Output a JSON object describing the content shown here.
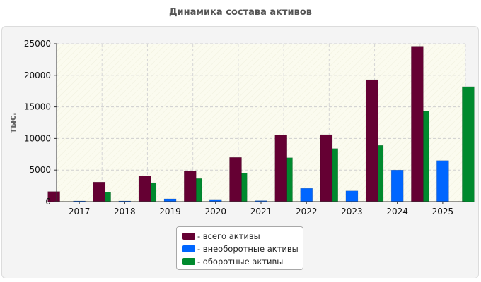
{
  "chart_data": {
    "type": "bar",
    "title": "Динамика состава активов",
    "ylabel": "тыс.",
    "xlabel": "",
    "categories": [
      "2017",
      "2018",
      "2019",
      "2020",
      "2021",
      "2022",
      "2023",
      "2024",
      "2025"
    ],
    "ylim": [
      0,
      25000
    ],
    "yticks": [
      0,
      5000,
      10000,
      15000,
      20000,
      25000
    ],
    "grid": true,
    "legend_position": "bottom",
    "series": [
      {
        "name": "- всего активы",
        "color": "#650033",
        "values": [
          1600,
          3100,
          4100,
          4800,
          7000,
          10500,
          10600,
          19300,
          24600
        ]
      },
      {
        "name": "- внеоборотные активы",
        "color": "#0066ff",
        "values": [
          100,
          100,
          450,
          350,
          150,
          2100,
          1700,
          5000,
          6500
        ]
      },
      {
        "name": "- оборотные активы",
        "color": "#008a2e",
        "values": [
          1500,
          3000,
          3650,
          4500,
          6950,
          8400,
          8900,
          14300,
          18200
        ]
      }
    ]
  }
}
